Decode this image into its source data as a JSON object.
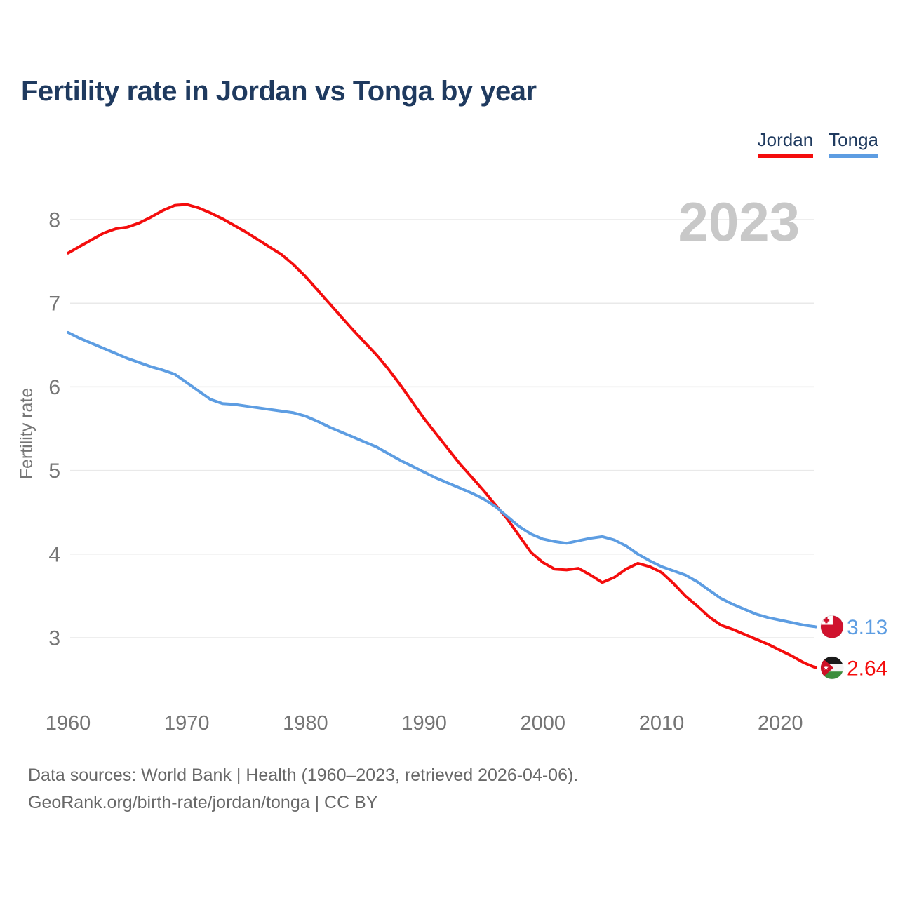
{
  "title": "Fertility rate in Jordan vs Tonga by year",
  "watermark": "2023",
  "legend": [
    {
      "label": "Jordan",
      "color": "#f40d0d"
    },
    {
      "label": "Tonga",
      "color": "#5d9de2"
    }
  ],
  "y_axis": {
    "label": "Fertility rate",
    "ticks": [
      3,
      4,
      5,
      6,
      7,
      8
    ]
  },
  "x_axis": {
    "ticks": [
      1960,
      1970,
      1980,
      1990,
      2000,
      2010,
      2020
    ]
  },
  "end_labels": [
    {
      "series": "Tonga",
      "value": "3.13",
      "flag": "tonga-flag"
    },
    {
      "series": "Jordan",
      "value": "2.64",
      "flag": "jordan-flag"
    }
  ],
  "footer": {
    "line1": "Data sources: World Bank | Health (1960–2023, retrieved 2026-04-06).",
    "line2": "GeoRank.org/birth-rate/jordan/tonga | CC BY"
  },
  "chart_data": {
    "type": "line",
    "title": "Fertility rate in Jordan vs Tonga by year",
    "xlabel": "",
    "ylabel": "Fertility rate",
    "x": [
      1960,
      1961,
      1962,
      1963,
      1964,
      1965,
      1966,
      1967,
      1968,
      1969,
      1970,
      1971,
      1972,
      1973,
      1974,
      1975,
      1976,
      1977,
      1978,
      1979,
      1980,
      1981,
      1982,
      1983,
      1984,
      1985,
      1986,
      1987,
      1988,
      1989,
      1990,
      1991,
      1992,
      1993,
      1994,
      1995,
      1996,
      1997,
      1998,
      1999,
      2000,
      2001,
      2002,
      2003,
      2004,
      2005,
      2006,
      2007,
      2008,
      2009,
      2010,
      2011,
      2012,
      2013,
      2014,
      2015,
      2016,
      2017,
      2018,
      2019,
      2020,
      2021,
      2022,
      2023
    ],
    "series": [
      {
        "name": "Jordan",
        "color": "#f40d0d",
        "values": [
          7.6,
          7.68,
          7.76,
          7.84,
          7.89,
          7.91,
          7.96,
          8.03,
          8.11,
          8.17,
          8.18,
          8.14,
          8.08,
          8.01,
          7.93,
          7.85,
          7.76,
          7.67,
          7.58,
          7.46,
          7.32,
          7.16,
          7.0,
          6.84,
          6.68,
          6.53,
          6.38,
          6.21,
          6.02,
          5.82,
          5.62,
          5.44,
          5.26,
          5.08,
          4.92,
          4.76,
          4.59,
          4.42,
          4.22,
          4.02,
          3.9,
          3.82,
          3.81,
          3.83,
          3.75,
          3.66,
          3.72,
          3.82,
          3.89,
          3.85,
          3.78,
          3.65,
          3.5,
          3.38,
          3.25,
          3.15,
          3.1,
          3.04,
          2.98,
          2.92,
          2.85,
          2.78,
          2.7,
          2.64
        ]
      },
      {
        "name": "Tonga",
        "color": "#5d9de2",
        "values": [
          6.65,
          6.58,
          6.52,
          6.46,
          6.4,
          6.34,
          6.29,
          6.24,
          6.2,
          6.15,
          6.05,
          5.95,
          5.85,
          5.8,
          5.79,
          5.77,
          5.75,
          5.73,
          5.71,
          5.69,
          5.65,
          5.59,
          5.52,
          5.46,
          5.4,
          5.34,
          5.28,
          5.2,
          5.12,
          5.05,
          4.98,
          4.91,
          4.85,
          4.79,
          4.73,
          4.66,
          4.57,
          4.45,
          4.33,
          4.24,
          4.18,
          4.15,
          4.13,
          4.16,
          4.19,
          4.21,
          4.17,
          4.1,
          4.0,
          3.92,
          3.85,
          3.8,
          3.75,
          3.67,
          3.57,
          3.47,
          3.4,
          3.34,
          3.28,
          3.24,
          3.21,
          3.18,
          3.15,
          3.13
        ]
      }
    ],
    "xlim": [
      1960,
      2023
    ],
    "ylim": [
      2.5,
      8.5
    ],
    "grid": true,
    "legend_position": "top-right"
  }
}
